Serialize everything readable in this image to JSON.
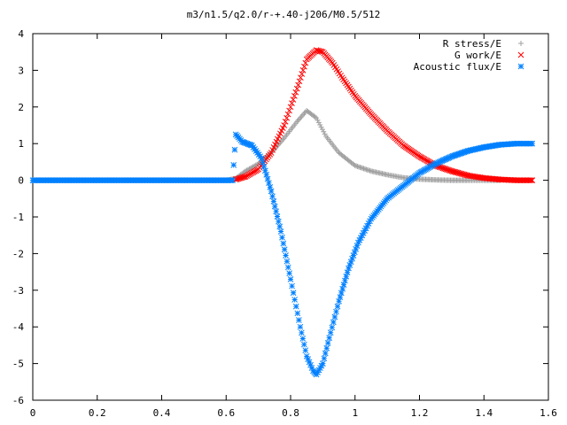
{
  "chart_data": {
    "type": "scatter",
    "title": "m3/n1.5/q2.0/r-+.40-j206/M0.5/512",
    "xlabel": "",
    "ylabel": "",
    "xlim": [
      0,
      1.6
    ],
    "ylim": [
      -6,
      4
    ],
    "x_ticks": [
      "0",
      "0.2",
      "0.4",
      "0.6",
      "0.8",
      "1",
      "1.2",
      "1.4",
      "1.6"
    ],
    "y_ticks": [
      "4",
      "3",
      "2",
      "1",
      "0",
      "-1",
      "-2",
      "-3",
      "-4",
      "-5",
      "-6"
    ],
    "legend_position": "top-right",
    "grid": false,
    "series": [
      {
        "name": "R stress/E",
        "marker": "plus",
        "color": "#a0a0a0",
        "x": [
          0,
          0.2,
          0.4,
          0.6,
          0.63,
          0.66,
          0.7,
          0.74,
          0.78,
          0.82,
          0.85,
          0.88,
          0.91,
          0.95,
          1.0,
          1.05,
          1.1,
          1.15,
          1.2,
          1.25,
          1.3,
          1.35,
          1.4,
          1.45
        ],
        "y": [
          0,
          0,
          0,
          0,
          0.05,
          0.25,
          0.45,
          0.75,
          1.15,
          1.6,
          1.9,
          1.7,
          1.2,
          0.75,
          0.4,
          0.25,
          0.15,
          0.07,
          0.03,
          0.01,
          0.0,
          0.0,
          0.0,
          0.0
        ]
      },
      {
        "name": "G work/E",
        "marker": "cross",
        "color": "#ff0000",
        "x": [
          0.63,
          0.66,
          0.7,
          0.74,
          0.78,
          0.82,
          0.85,
          0.88,
          0.9,
          0.93,
          0.96,
          1.0,
          1.05,
          1.1,
          1.15,
          1.2,
          1.25,
          1.3,
          1.35,
          1.4,
          1.45,
          1.5,
          1.55
        ],
        "y": [
          0.02,
          0.1,
          0.3,
          0.75,
          1.5,
          2.5,
          3.3,
          3.55,
          3.5,
          3.2,
          2.8,
          2.3,
          1.8,
          1.35,
          0.95,
          0.65,
          0.4,
          0.25,
          0.13,
          0.06,
          0.02,
          0.0,
          0.0
        ]
      },
      {
        "name": "Acoustic flux/E",
        "marker": "star",
        "color": "#0080ff",
        "x": [
          0,
          0.1,
          0.2,
          0.3,
          0.4,
          0.5,
          0.6,
          0.62,
          0.63,
          0.65,
          0.68,
          0.71,
          0.74,
          0.77,
          0.8,
          0.83,
          0.85,
          0.87,
          0.88,
          0.9,
          0.92,
          0.95,
          0.98,
          1.01,
          1.05,
          1.1,
          1.15,
          1.2,
          1.25,
          1.3,
          1.35,
          1.4,
          1.45,
          1.5,
          1.55
        ],
        "y": [
          0,
          0,
          0,
          0,
          0,
          0,
          0,
          0,
          1.25,
          1.05,
          0.95,
          0.6,
          -0.3,
          -1.4,
          -2.7,
          -4.0,
          -4.8,
          -5.2,
          -5.3,
          -5.0,
          -4.3,
          -3.3,
          -2.4,
          -1.7,
          -1.05,
          -0.5,
          -0.15,
          0.2,
          0.45,
          0.65,
          0.8,
          0.9,
          0.97,
          1.0,
          1.0
        ]
      }
    ]
  }
}
